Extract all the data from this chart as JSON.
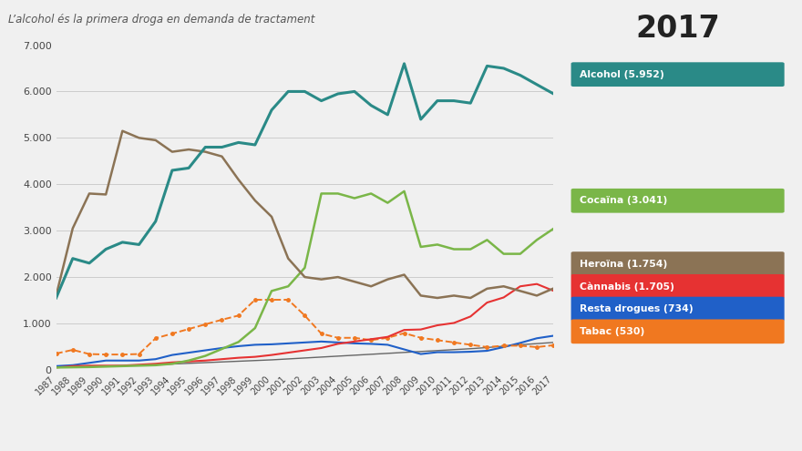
{
  "title": "L’alcohol és la primera droga en demanda de tractament",
  "year_label": "2017",
  "years": [
    1987,
    1988,
    1989,
    1990,
    1991,
    1992,
    1993,
    1994,
    1995,
    1996,
    1997,
    1998,
    1999,
    2000,
    2001,
    2002,
    2003,
    2004,
    2005,
    2006,
    2007,
    2008,
    2009,
    2010,
    2011,
    2012,
    2013,
    2014,
    2015,
    2016,
    2017
  ],
  "series": {
    "Alcohol": {
      "color": "#2a8a87",
      "label": "Alcohol (5.952)",
      "lw": 2.2,
      "ls": "-",
      "marker": "None",
      "data": [
        1550,
        2400,
        2300,
        2600,
        2750,
        2700,
        3200,
        4300,
        4350,
        4800,
        4800,
        4900,
        4850,
        5600,
        6000,
        6000,
        5800,
        5950,
        6000,
        5700,
        5500,
        6600,
        5400,
        5800,
        5800,
        5750,
        6550,
        6500,
        6350,
        6150,
        5952
      ]
    },
    "Heroina": {
      "color": "#8b7355",
      "label": "Heroïna (1.754)",
      "lw": 1.8,
      "ls": "-",
      "marker": "None",
      "data": [
        1600,
        3050,
        3800,
        3780,
        5150,
        5000,
        4950,
        4700,
        4750,
        4700,
        4600,
        4100,
        3650,
        3300,
        2400,
        2000,
        1950,
        2000,
        1900,
        1800,
        1950,
        2050,
        1600,
        1550,
        1600,
        1550,
        1750,
        1800,
        1700,
        1600,
        1754
      ]
    },
    "Cocaina": {
      "color": "#7ab648",
      "label": "Cocaïna (3.041)",
      "lw": 1.8,
      "ls": "-",
      "marker": "None",
      "data": [
        50,
        55,
        60,
        70,
        80,
        90,
        100,
        130,
        200,
        300,
        450,
        600,
        900,
        1700,
        1800,
        2200,
        3800,
        3800,
        3700,
        3800,
        3600,
        3850,
        2650,
        2700,
        2600,
        2600,
        2800,
        2500,
        2500,
        2800,
        3041
      ]
    },
    "Cannabis": {
      "color": "#e63232",
      "label": "Cànnabis (1.705)",
      "lw": 1.5,
      "ls": "-",
      "marker": "None",
      "data": [
        50,
        80,
        90,
        90,
        90,
        110,
        130,
        160,
        180,
        200,
        230,
        260,
        280,
        320,
        370,
        420,
        470,
        560,
        610,
        660,
        710,
        860,
        870,
        960,
        1010,
        1150,
        1450,
        1560,
        1800,
        1850,
        1705
      ]
    },
    "Resta": {
      "color": "#2060c8",
      "label": "Resta drogues (734)",
      "lw": 1.5,
      "ls": "-",
      "marker": "None",
      "data": [
        80,
        100,
        150,
        200,
        200,
        200,
        230,
        320,
        370,
        420,
        470,
        510,
        540,
        550,
        570,
        590,
        610,
        590,
        570,
        560,
        540,
        440,
        340,
        380,
        380,
        390,
        410,
        490,
        580,
        680,
        734
      ]
    },
    "Tabac": {
      "color": "#f07820",
      "label": "Tabac (530)",
      "lw": 1.4,
      "ls": "--",
      "marker": "o",
      "data": [
        350,
        430,
        340,
        330,
        330,
        340,
        680,
        780,
        880,
        980,
        1080,
        1170,
        1510,
        1510,
        1510,
        1170,
        780,
        690,
        690,
        640,
        690,
        790,
        690,
        640,
        590,
        540,
        490,
        520,
        520,
        490,
        530
      ]
    },
    "Altres": {
      "color": "#666666",
      "label": "",
      "lw": 1.0,
      "ls": "-",
      "marker": "None",
      "data": [
        50,
        60,
        70,
        80,
        90,
        100,
        110,
        125,
        140,
        155,
        170,
        185,
        200,
        215,
        235,
        255,
        275,
        295,
        315,
        335,
        355,
        375,
        395,
        415,
        435,
        455,
        480,
        510,
        540,
        565,
        590
      ]
    }
  },
  "ylim": [
    0,
    7000
  ],
  "yticks": [
    0,
    1000,
    2000,
    3000,
    4000,
    5000,
    6000,
    7000
  ],
  "ytick_labels": [
    "0",
    "1.000",
    "2.000",
    "3.000",
    "4.000",
    "5.000",
    "6.000",
    "7.000"
  ],
  "bg_color": "#f0f0f0",
  "legend_items": [
    {
      "label": "Alcohol (5.952)",
      "color": "#2a8a87"
    },
    {
      "label": "Cocaïna (3.041)",
      "color": "#7ab648"
    },
    {
      "label": "Heroïna (1.754)",
      "color": "#8b7355"
    },
    {
      "label": "Cànnabis (1.705)",
      "color": "#e63232"
    },
    {
      "label": "Resta drogues (734)",
      "color": "#2060c8"
    },
    {
      "label": "Tabac (530)",
      "color": "#f07820"
    }
  ]
}
